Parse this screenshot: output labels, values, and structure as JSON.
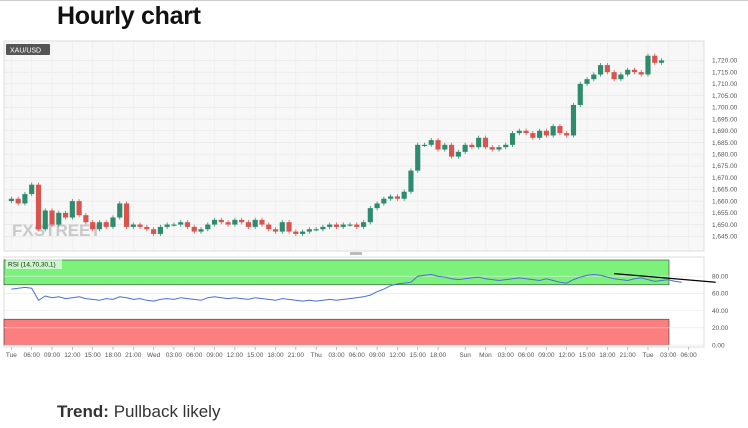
{
  "page": {
    "title": "Hourly chart",
    "trend_label": "Trend:",
    "trend_value": "Pullback likely"
  },
  "chart_data": [
    {
      "type": "candlestick",
      "symbol": "XAU/USD",
      "watermark": "FXSTREET",
      "ylim": [
        1640,
        1727
      ],
      "y_ticks": [
        "1,645.00",
        "1,650.00",
        "1,655.00",
        "1,660.00",
        "1,665.00",
        "1,670.00",
        "1,675.00",
        "1,680.00",
        "1,685.00",
        "1,690.00",
        "1,695.00",
        "1,700.00",
        "1,705.00",
        "1,710.00",
        "1,715.00",
        "1,720.00"
      ],
      "y_tick_values": [
        1645,
        1650,
        1655,
        1660,
        1665,
        1670,
        1675,
        1680,
        1685,
        1690,
        1695,
        1700,
        1705,
        1710,
        1715,
        1720
      ],
      "x_ticks": [
        "Tue",
        "06:00",
        "09:00",
        "12:00",
        "15:00",
        "18:00",
        "21:00",
        "Wed",
        "03:00",
        "06:00",
        "09:00",
        "12:00",
        "15:00",
        "18:00",
        "21:00",
        "Thu",
        "03:00",
        "06:00",
        "09:00",
        "12:00",
        "15:00",
        "18:00",
        "Sun",
        "Mon",
        "03:00",
        "06:00",
        "09:00",
        "12:00",
        "15:00",
        "18:00",
        "21:00",
        "Tue",
        "03:00",
        "06:00"
      ],
      "x_tick_slots": [
        0,
        3,
        6,
        9,
        12,
        15,
        18,
        21,
        24,
        27,
        30,
        33,
        36,
        39,
        42,
        45,
        48,
        51,
        54,
        57,
        60,
        63,
        67,
        70,
        73,
        76,
        79,
        82,
        85,
        88,
        91,
        94,
        97,
        100
      ],
      "slot_count": 101,
      "candles": [
        [
          1660,
          1661
        ],
        [
          1661,
          1659
        ],
        [
          1659,
          1663
        ],
        [
          1663,
          1667
        ],
        [
          1667,
          1648
        ],
        [
          1648,
          1656
        ],
        [
          1656,
          1650
        ],
        [
          1650,
          1655
        ],
        [
          1655,
          1653
        ],
        [
          1653,
          1660
        ],
        [
          1660,
          1654
        ],
        [
          1654,
          1651
        ],
        [
          1651,
          1648
        ],
        [
          1648,
          1651
        ],
        [
          1651,
          1649
        ],
        [
          1649,
          1653
        ],
        [
          1653,
          1659
        ],
        [
          1659,
          1649
        ],
        [
          1649,
          1650
        ],
        [
          1650,
          1649
        ],
        [
          1649,
          1648
        ],
        [
          1648,
          1646
        ],
        [
          1646,
          1649
        ],
        [
          1649,
          1650
        ],
        [
          1650,
          1650
        ],
        [
          1650,
          1651
        ],
        [
          1651,
          1649
        ],
        [
          1649,
          1647
        ],
        [
          1647,
          1648
        ],
        [
          1648,
          1650
        ],
        [
          1650,
          1652
        ],
        [
          1652,
          1651
        ],
        [
          1651,
          1650
        ],
        [
          1650,
          1652
        ],
        [
          1652,
          1651
        ],
        [
          1651,
          1649
        ],
        [
          1649,
          1652
        ],
        [
          1652,
          1650
        ],
        [
          1650,
          1648
        ],
        [
          1648,
          1647
        ],
        [
          1647,
          1651
        ],
        [
          1651,
          1647
        ],
        [
          1647,
          1646
        ],
        [
          1646,
          1647
        ],
        [
          1647,
          1648
        ],
        [
          1648,
          1648
        ],
        [
          1648,
          1649
        ],
        [
          1649,
          1650
        ],
        [
          1650,
          1649
        ],
        [
          1649,
          1650
        ],
        [
          1650,
          1650
        ],
        [
          1650,
          1649
        ],
        [
          1649,
          1651
        ],
        [
          1651,
          1657
        ],
        [
          1657,
          1659
        ],
        [
          1659,
          1661
        ],
        [
          1661,
          1662
        ],
        [
          1662,
          1661
        ],
        [
          1661,
          1664
        ],
        [
          1664,
          1673
        ],
        [
          1673,
          1684
        ],
        [
          1684,
          1684
        ],
        [
          1684,
          1686
        ],
        [
          1686,
          1682
        ],
        [
          1682,
          1684
        ],
        [
          1684,
          1679
        ],
        [
          1679,
          1681
        ],
        [
          1681,
          1684
        ],
        [
          1684,
          1683
        ],
        [
          1683,
          1687
        ],
        [
          1687,
          1683
        ],
        [
          1683,
          1682
        ],
        [
          1682,
          1683
        ],
        [
          1683,
          1684
        ],
        [
          1684,
          1689
        ],
        [
          1689,
          1690
        ],
        [
          1690,
          1689
        ],
        [
          1689,
          1687
        ],
        [
          1687,
          1690
        ],
        [
          1690,
          1688
        ],
        [
          1688,
          1692
        ],
        [
          1692,
          1689
        ],
        [
          1689,
          1688
        ],
        [
          1688,
          1701
        ],
        [
          1701,
          1710
        ],
        [
          1710,
          1712
        ],
        [
          1712,
          1714
        ],
        [
          1714,
          1718
        ],
        [
          1718,
          1715
        ],
        [
          1715,
          1712
        ],
        [
          1712,
          1714
        ],
        [
          1714,
          1716
        ],
        [
          1716,
          1715
        ],
        [
          1715,
          1714
        ],
        [
          1714,
          1722
        ],
        [
          1722,
          1719
        ],
        [
          1719,
          1720
        ]
      ]
    },
    {
      "type": "line",
      "indicator": "RSI (14,70,30,1)",
      "ylim": [
        0,
        100
      ],
      "upper_level": 70,
      "lower_level": 30,
      "y_ticks": [
        "80.00",
        "60.00",
        "40.00",
        "20.00",
        "0.00"
      ],
      "y_tick_values": [
        80,
        60,
        40,
        20,
        0
      ],
      "values": [
        65,
        66,
        67,
        66,
        52,
        57,
        55,
        56,
        54,
        55,
        56,
        54,
        53,
        52,
        54,
        53,
        56,
        55,
        53,
        54,
        52,
        51,
        53,
        54,
        53,
        55,
        54,
        53,
        52,
        55,
        56,
        55,
        54,
        55,
        54,
        53,
        55,
        54,
        53,
        52,
        54,
        53,
        52,
        51,
        52,
        51,
        52,
        53,
        52,
        53,
        54,
        55,
        56,
        58,
        62,
        65,
        69,
        71,
        72,
        73,
        80,
        81,
        82,
        80,
        79,
        77,
        76,
        77,
        78,
        79,
        77,
        76,
        75,
        76,
        77,
        78,
        77,
        76,
        75,
        77,
        75,
        73,
        72,
        76,
        79,
        81,
        82,
        81,
        79,
        77,
        76,
        75,
        77,
        78,
        76,
        74,
        75,
        76,
        74,
        73
      ],
      "trendline": {
        "from": [
          89,
          83
        ],
        "to": [
          104,
          73
        ]
      }
    }
  ]
}
